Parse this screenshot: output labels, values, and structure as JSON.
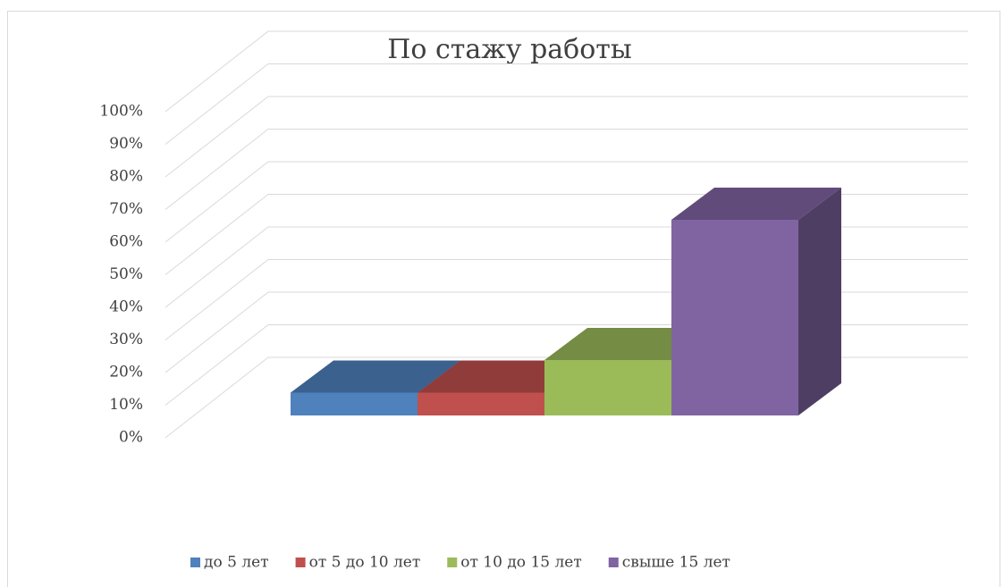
{
  "chart_data": {
    "type": "bar3d",
    "title": "По стажу работы",
    "categories": [
      null
    ],
    "series": [
      {
        "name": "до 5 лет",
        "color": "#4f81bd",
        "values": [
          7
        ]
      },
      {
        "name": "от 5 до 10 лет",
        "color": "#c0504d",
        "values": [
          7
        ]
      },
      {
        "name": "от 10 до 15 лет",
        "color": "#9bbb59",
        "values": [
          17
        ]
      },
      {
        "name": "свыше 15 лет",
        "color": "#8064a2",
        "values": [
          60
        ]
      }
    ],
    "ylim": [
      0,
      100
    ],
    "yticks": [
      {
        "value": 0,
        "label": "0%"
      },
      {
        "value": 10,
        "label": "10%"
      },
      {
        "value": 20,
        "label": "20%"
      },
      {
        "value": 30,
        "label": "30%"
      },
      {
        "value": 40,
        "label": "40%"
      },
      {
        "value": 50,
        "label": "50%"
      },
      {
        "value": 60,
        "label": "60%"
      },
      {
        "value": 70,
        "label": "70%"
      },
      {
        "value": 80,
        "label": "80%"
      },
      {
        "value": 90,
        "label": "90%"
      },
      {
        "value": 100,
        "label": "100%"
      }
    ],
    "grid": true,
    "legend": "bottom"
  }
}
